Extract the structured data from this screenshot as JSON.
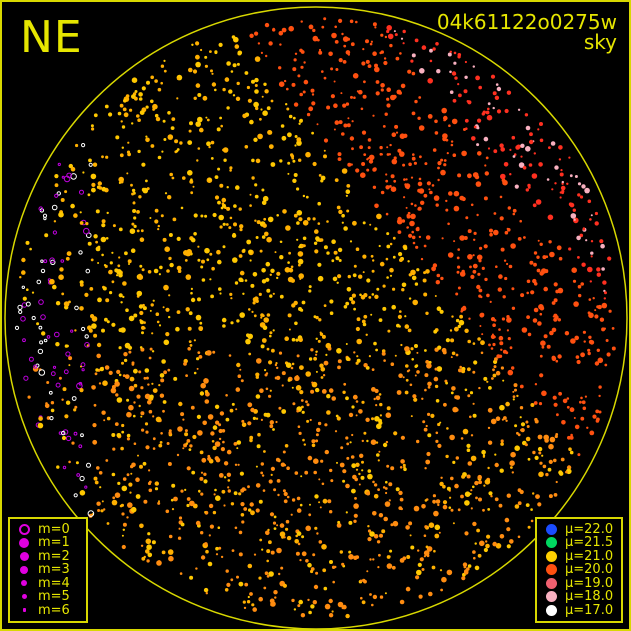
{
  "direction_label": "NE",
  "title": {
    "frame_id": "04k61122o0275w",
    "subtitle": "sky"
  },
  "colors": {
    "border": "#d8d800",
    "text": "#e6e600",
    "magnitude_symbol": "#e000e0"
  },
  "magnitude_legend": [
    {
      "label": "m=0"
    },
    {
      "label": "m=1"
    },
    {
      "label": "m=2"
    },
    {
      "label": "m=3"
    },
    {
      "label": "m=4"
    },
    {
      "label": "m=5"
    },
    {
      "label": "m=6"
    }
  ],
  "brightness_legend": [
    {
      "label": "μ=22.0",
      "color": "#1a4cff"
    },
    {
      "label": "μ=21.5",
      "color": "#00d860"
    },
    {
      "label": "μ=21.0",
      "color": "#ffd000"
    },
    {
      "label": "μ=20.0",
      "color": "#ff5010"
    },
    {
      "label": "μ=19.0",
      "color": "#f06070"
    },
    {
      "label": "μ=18.0",
      "color": "#f8b0c0"
    },
    {
      "label": "μ=17.0",
      "color": "#ffffff"
    }
  ]
}
